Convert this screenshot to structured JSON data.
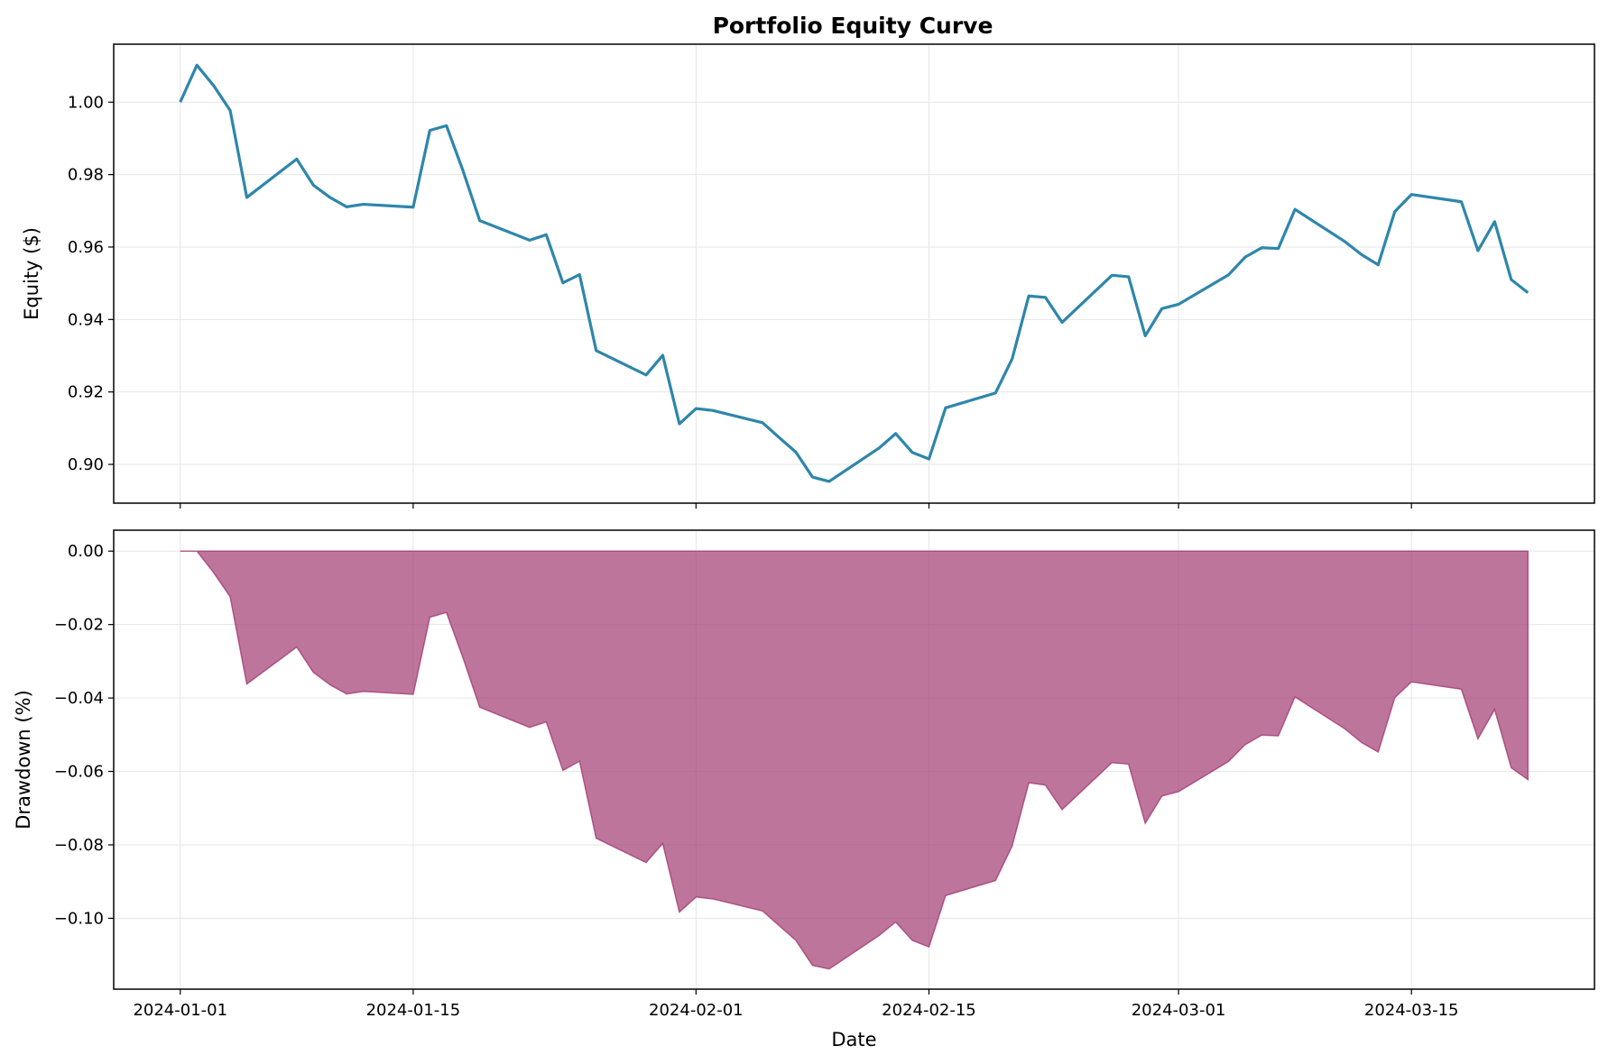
{
  "figure": {
    "title": "Portfolio Equity Curve"
  },
  "colors": {
    "equity_line": "#2e86ab",
    "drawdown_fill": "#a23b72",
    "grid": "#e6e6e6",
    "axes": "#000000"
  },
  "chart_data": [
    {
      "type": "line",
      "title": "Portfolio Equity Curve",
      "xlabel": "",
      "ylabel": "Equity ($)",
      "grid": true,
      "xlim": [
        "2023-12-28",
        "2024-03-26"
      ],
      "ylim": [
        0.8893,
        1.016
      ],
      "x_tick_labels": [
        "2024-01-01",
        "2024-01-15",
        "2024-02-01",
        "2024-02-15",
        "2024-03-01",
        "2024-03-15"
      ],
      "y_tick_labels": [
        "0.90",
        "0.92",
        "0.94",
        "0.96",
        "0.98",
        "1.00"
      ],
      "series": [
        {
          "x": [
            "2024-01-01",
            "2024-01-02",
            "2024-01-03",
            "2024-01-04",
            "2024-01-05",
            "2024-01-08",
            "2024-01-09",
            "2024-01-10",
            "2024-01-11",
            "2024-01-12",
            "2024-01-15",
            "2024-01-16",
            "2024-01-17",
            "2024-01-18",
            "2024-01-19",
            "2024-01-22",
            "2024-01-23",
            "2024-01-24",
            "2024-01-25",
            "2024-01-26",
            "2024-01-29",
            "2024-01-30",
            "2024-01-31",
            "2024-02-01",
            "2024-02-02",
            "2024-02-05",
            "2024-02-06",
            "2024-02-07",
            "2024-02-08",
            "2024-02-09",
            "2024-02-12",
            "2024-02-13",
            "2024-02-14",
            "2024-02-15",
            "2024-02-16",
            "2024-02-19",
            "2024-02-20",
            "2024-02-21",
            "2024-02-22",
            "2024-02-23",
            "2024-02-26",
            "2024-02-27",
            "2024-02-28",
            "2024-02-29",
            "2024-03-01",
            "2024-03-04",
            "2024-03-05",
            "2024-03-06",
            "2024-03-07",
            "2024-03-08",
            "2024-03-11",
            "2024-03-12",
            "2024-03-13",
            "2024-03-14",
            "2024-03-15",
            "2024-03-18",
            "2024-03-19",
            "2024-03-20",
            "2024-03-21",
            "2024-03-22"
          ],
          "values": [
            1.0,
            1.0102,
            1.0046,
            0.9977,
            0.9737,
            0.9843,
            0.9771,
            0.9737,
            0.9711,
            0.9718,
            0.971,
            0.9922,
            0.9935,
            0.981,
            0.9673,
            0.9619,
            0.9634,
            0.9501,
            0.9524,
            0.9314,
            0.9247,
            0.9301,
            0.9112,
            0.9154,
            0.9149,
            0.9115,
            0.9074,
            0.9034,
            0.8965,
            0.8953,
            0.9045,
            0.9085,
            0.9033,
            0.9015,
            0.9156,
            0.9197,
            0.9291,
            0.9465,
            0.9461,
            0.9392,
            0.9522,
            0.9518,
            0.9355,
            0.943,
            0.9442,
            0.9523,
            0.9572,
            0.9598,
            0.9596,
            0.9704,
            0.9615,
            0.9579,
            0.9551,
            0.9698,
            0.9745,
            0.9725,
            0.959,
            0.967,
            0.951,
            0.9474
          ]
        }
      ]
    },
    {
      "type": "area",
      "xlabel": "Date",
      "ylabel": "Drawdown (%)",
      "grid": true,
      "xlim": [
        "2023-12-28",
        "2024-03-26"
      ],
      "ylim": [
        -0.1193,
        0.0057
      ],
      "x_tick_labels": [
        "2024-01-01",
        "2024-01-15",
        "2024-02-01",
        "2024-02-15",
        "2024-03-01",
        "2024-03-15"
      ],
      "y_tick_labels": [
        "−0.10",
        "−0.08",
        "−0.06",
        "−0.04",
        "−0.02",
        "0.00"
      ],
      "series": [
        {
          "x": [
            "2024-01-01",
            "2024-01-02",
            "2024-01-03",
            "2024-01-04",
            "2024-01-05",
            "2024-01-08",
            "2024-01-09",
            "2024-01-10",
            "2024-01-11",
            "2024-01-12",
            "2024-01-15",
            "2024-01-16",
            "2024-01-17",
            "2024-01-18",
            "2024-01-19",
            "2024-01-22",
            "2024-01-23",
            "2024-01-24",
            "2024-01-25",
            "2024-01-26",
            "2024-01-29",
            "2024-01-30",
            "2024-01-31",
            "2024-02-01",
            "2024-02-02",
            "2024-02-05",
            "2024-02-06",
            "2024-02-07",
            "2024-02-08",
            "2024-02-09",
            "2024-02-12",
            "2024-02-13",
            "2024-02-14",
            "2024-02-15",
            "2024-02-16",
            "2024-02-19",
            "2024-02-20",
            "2024-02-21",
            "2024-02-22",
            "2024-02-23",
            "2024-02-26",
            "2024-02-27",
            "2024-02-28",
            "2024-02-29",
            "2024-03-01",
            "2024-03-04",
            "2024-03-05",
            "2024-03-06",
            "2024-03-07",
            "2024-03-08",
            "2024-03-11",
            "2024-03-12",
            "2024-03-13",
            "2024-03-14",
            "2024-03-15",
            "2024-03-18",
            "2024-03-19",
            "2024-03-20",
            "2024-03-21",
            "2024-03-22"
          ],
          "values": [
            0.0,
            0.0,
            -0.0058,
            -0.0124,
            -0.0362,
            -0.0261,
            -0.033,
            -0.0364,
            -0.0389,
            -0.0382,
            -0.039,
            -0.018,
            -0.0167,
            -0.0291,
            -0.0425,
            -0.048,
            -0.0465,
            -0.0597,
            -0.0572,
            -0.0782,
            -0.0848,
            -0.0796,
            -0.0983,
            -0.0942,
            -0.0947,
            -0.098,
            -0.102,
            -0.106,
            -0.1128,
            -0.1138,
            -0.1047,
            -0.101,
            -0.106,
            -0.1078,
            -0.0938,
            -0.0897,
            -0.0803,
            -0.0631,
            -0.0637,
            -0.0704,
            -0.0576,
            -0.058,
            -0.0741,
            -0.0667,
            -0.0655,
            -0.0573,
            -0.0527,
            -0.0501,
            -0.0503,
            -0.0397,
            -0.0484,
            -0.0521,
            -0.0547,
            -0.0399,
            -0.0356,
            -0.0376,
            -0.0511,
            -0.0431,
            -0.059,
            -0.0622
          ]
        }
      ]
    }
  ]
}
